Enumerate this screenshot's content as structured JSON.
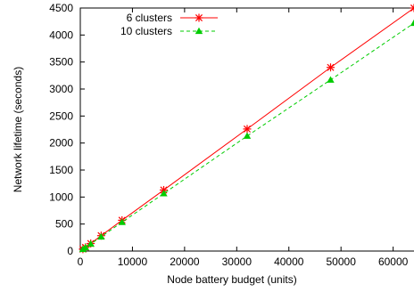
{
  "chart_data": {
    "type": "line",
    "title": "",
    "xlabel": "Node battery budget (units)",
    "ylabel": "Network lifetime (seconds)",
    "xlim": [
      0,
      64000
    ],
    "ylim": [
      0,
      4500
    ],
    "xticks": [
      0,
      10000,
      20000,
      30000,
      40000,
      50000,
      60000
    ],
    "xtick_labels": [
      "0",
      "10000",
      "20000",
      "30000",
      "40000",
      "50000",
      "60000"
    ],
    "yticks": [
      0,
      500,
      1000,
      1500,
      2000,
      2500,
      3000,
      3500,
      4000,
      4500
    ],
    "ytick_labels": [
      "0",
      "500",
      "1000",
      "1500",
      "2000",
      "2500",
      "3000",
      "3500",
      "4000",
      "4500"
    ],
    "grid": false,
    "legend_position": "top-left",
    "series": [
      {
        "name": "6 clusters",
        "color": "#ff0000",
        "line_style": "solid",
        "marker": "asterisk",
        "x": [
          500,
          1000,
          2000,
          4000,
          8000,
          16000,
          32000,
          48000,
          64000
        ],
        "y": [
          35,
          70,
          140,
          285,
          570,
          1130,
          2260,
          3400,
          4500
        ]
      },
      {
        "name": "10 clusters",
        "color": "#00cc00",
        "line_style": "dashed",
        "marker": "triangle",
        "x": [
          500,
          1000,
          2000,
          4000,
          8000,
          16000,
          32000,
          48000,
          64000
        ],
        "y": [
          33,
          66,
          133,
          265,
          535,
          1065,
          2130,
          3170,
          4220
        ]
      }
    ]
  }
}
